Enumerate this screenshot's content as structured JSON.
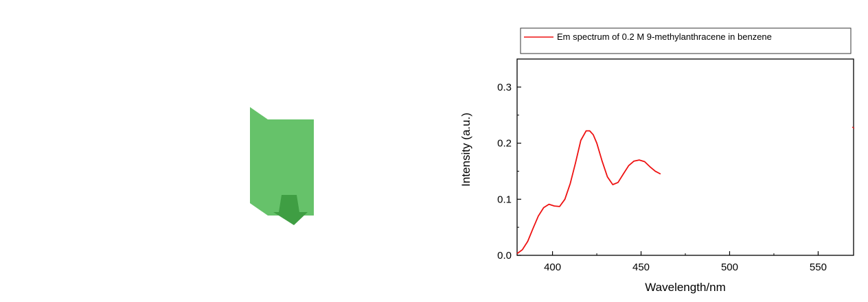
{
  "colors": {
    "panel_green": "#66c26a",
    "arrow_green": "#3f9e43",
    "series_red": "#ee1111"
  },
  "chart_data": {
    "type": "line",
    "xlabel": "Wavelength/nm",
    "ylabel": "Intensity (a.u.)",
    "xlim": [
      380,
      570
    ],
    "ylim": [
      0,
      0.35
    ],
    "x_ticks": [
      400,
      450,
      500,
      550
    ],
    "y_ticks": [
      0.0,
      0.1,
      0.2,
      0.3
    ],
    "y_tick_labels": [
      "0.0",
      "0.1",
      "0.2",
      "0.3"
    ],
    "legend": {
      "placement": "top",
      "entries": [
        "Em spectrum of 0.2 M 9-methylanthracene in benzene"
      ]
    },
    "series": [
      {
        "name": "Em spectrum of 0.2 M 9-methylanthracene in benzene",
        "color": "#ee1111",
        "x": [
          380,
          383,
          386,
          389,
          392,
          395,
          398,
          401,
          404,
          407,
          410,
          413,
          416,
          419,
          421,
          423,
          425,
          428,
          431,
          434,
          437,
          440,
          443,
          446,
          449,
          452,
          455,
          458,
          461
        ],
        "y": [
          0.003,
          0.01,
          0.025,
          0.048,
          0.07,
          0.085,
          0.091,
          0.088,
          0.087,
          0.1,
          0.128,
          0.165,
          0.205,
          0.222,
          0.222,
          0.215,
          0.2,
          0.168,
          0.14,
          0.126,
          0.13,
          0.145,
          0.16,
          0.168,
          0.17,
          0.167,
          0.158,
          0.15,
          0.145
        ]
      }
    ],
    "grid": false
  }
}
